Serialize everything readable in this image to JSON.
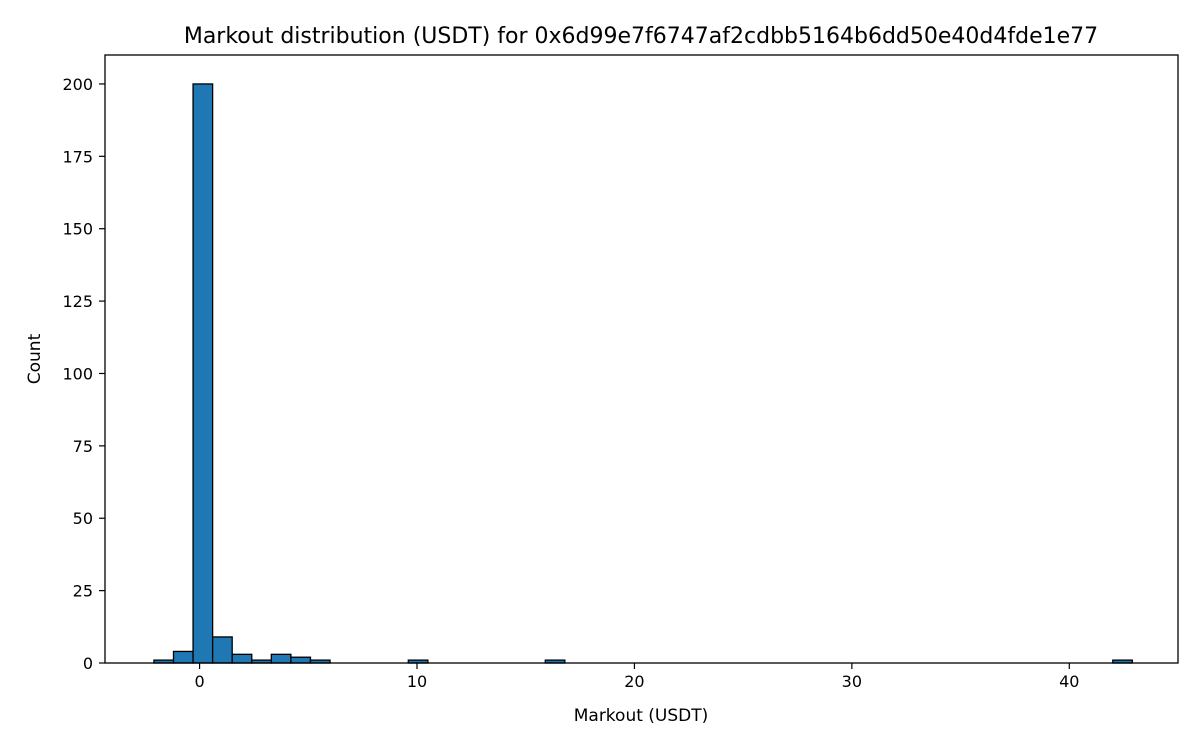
{
  "chart_data": {
    "type": "bar",
    "title": "Markout distribution (USDT) for 0x6d99e7f6747af2cdbb5164b6dd50e40d4fde1e77",
    "xlabel": "Markout (USDT)",
    "ylabel": "Count",
    "xlim": [
      -4.35,
      45.0
    ],
    "ylim": [
      0,
      210
    ],
    "xticks": [
      0,
      10,
      20,
      30,
      40
    ],
    "yticks": [
      0,
      25,
      50,
      75,
      100,
      125,
      150,
      175,
      200
    ],
    "bin_width": 0.9,
    "bin_start": -2.1,
    "bar_color": "#1f77b4",
    "edge_color": "#000000",
    "grid": false,
    "legend": "none",
    "bins": [
      {
        "x": -2.1,
        "count": 1
      },
      {
        "x": -1.2,
        "count": 4
      },
      {
        "x": -0.3,
        "count": 200
      },
      {
        "x": 0.6,
        "count": 9
      },
      {
        "x": 1.5,
        "count": 3
      },
      {
        "x": 2.4,
        "count": 1
      },
      {
        "x": 3.3,
        "count": 3
      },
      {
        "x": 4.2,
        "count": 2
      },
      {
        "x": 5.1,
        "count": 1
      },
      {
        "x": 9.6,
        "count": 1
      },
      {
        "x": 15.9,
        "count": 1
      },
      {
        "x": 42.0,
        "count": 1
      }
    ]
  }
}
